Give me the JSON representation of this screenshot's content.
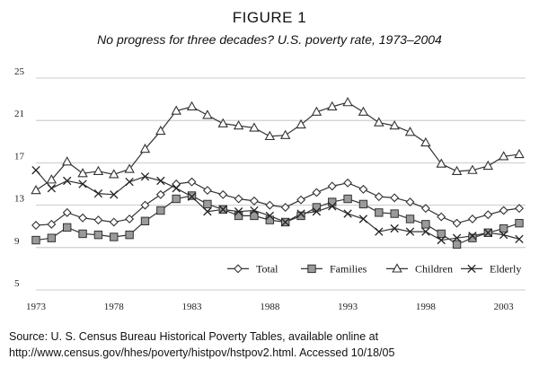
{
  "figure": {
    "title": "FIGURE 1",
    "subtitle": "No progress for three decades? U.S. poverty rate, 1973–2004"
  },
  "source": {
    "line1": "Source: U. S. Census Bureau Historical Poverty Tables, available online at",
    "line2": "http://www.census.gov/hhes/poverty/histpov/hstpov2.html. Accessed  10/18/05"
  },
  "chart_data": {
    "type": "line",
    "x": [
      1973,
      1974,
      1975,
      1976,
      1977,
      1978,
      1979,
      1980,
      1981,
      1982,
      1983,
      1984,
      1985,
      1986,
      1987,
      1988,
      1989,
      1990,
      1991,
      1992,
      1993,
      1994,
      1995,
      1996,
      1997,
      1998,
      1999,
      2000,
      2001,
      2002,
      2003,
      2004
    ],
    "xticks": [
      1973,
      1978,
      1983,
      1988,
      1993,
      1998,
      2003
    ],
    "yticks": [
      5,
      9,
      13,
      17,
      21,
      25
    ],
    "xlim": [
      1973,
      2004
    ],
    "ylim": [
      5,
      25
    ],
    "grid": "horizontal",
    "legend_position": "bottom-right",
    "series": [
      {
        "name": "Total",
        "marker": "diamond",
        "values": [
          11.1,
          11.2,
          12.3,
          11.8,
          11.6,
          11.4,
          11.7,
          13.0,
          14.0,
          15.0,
          15.2,
          14.4,
          14.0,
          13.6,
          13.4,
          13.0,
          12.8,
          13.5,
          14.2,
          14.8,
          15.1,
          14.5,
          13.8,
          13.7,
          13.3,
          12.7,
          11.9,
          11.3,
          11.7,
          12.1,
          12.5,
          12.7
        ]
      },
      {
        "name": "Families",
        "marker": "square",
        "values": [
          9.7,
          9.9,
          10.9,
          10.3,
          10.2,
          10.0,
          10.2,
          11.5,
          12.5,
          13.6,
          13.9,
          13.1,
          12.6,
          12.0,
          12.0,
          11.6,
          11.4,
          12.0,
          12.8,
          13.3,
          13.6,
          13.1,
          12.3,
          12.2,
          11.7,
          11.2,
          10.3,
          9.3,
          9.9,
          10.4,
          10.8,
          11.3
        ]
      },
      {
        "name": "Children",
        "marker": "triangle",
        "values": [
          14.4,
          15.4,
          17.1,
          16.0,
          16.2,
          15.9,
          16.4,
          18.3,
          20.0,
          21.9,
          22.3,
          21.5,
          20.7,
          20.5,
          20.3,
          19.5,
          19.6,
          20.6,
          21.8,
          22.3,
          22.7,
          21.8,
          20.8,
          20.5,
          19.9,
          18.9,
          16.9,
          16.2,
          16.3,
          16.7,
          17.6,
          17.8
        ]
      },
      {
        "name": "Elderly",
        "marker": "x",
        "values": [
          16.3,
          14.6,
          15.3,
          15.0,
          14.1,
          14.0,
          15.2,
          15.7,
          15.3,
          14.6,
          13.8,
          12.4,
          12.6,
          12.4,
          12.5,
          12.0,
          11.4,
          12.2,
          12.4,
          12.9,
          12.2,
          11.7,
          10.5,
          10.8,
          10.5,
          10.5,
          9.7,
          9.9,
          10.1,
          10.4,
          10.2,
          9.8
        ]
      }
    ]
  }
}
